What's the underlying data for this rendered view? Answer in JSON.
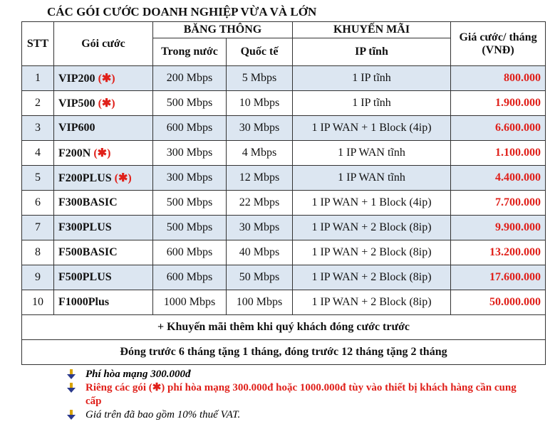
{
  "title": "CÁC GÓI CƯỚC DOANH NGHIỆP VỪA VÀ LỚN",
  "headers": {
    "stt": "STT",
    "package": "Gói cước",
    "bandwidth": "BĂNG THÔNG",
    "domestic": "Trong nước",
    "international": "Quốc tế",
    "promo": "KHUYẾN MÃI",
    "static_ip": "IP tĩnh",
    "price": "Giá cước/ tháng (VNĐ)"
  },
  "rows": [
    {
      "stt": "1",
      "name": "VIP200",
      "star": "(✱)",
      "domestic": "200 Mbps",
      "intl": "5 Mbps",
      "ip": "1 IP tĩnh",
      "price": "800.000"
    },
    {
      "stt": "2",
      "name": "VIP500",
      "star": "(✱)",
      "domestic": "500 Mbps",
      "intl": "10 Mbps",
      "ip": "1 IP tĩnh",
      "price": "1.900.000"
    },
    {
      "stt": "3",
      "name": "VIP600",
      "star": "",
      "domestic": "600 Mbps",
      "intl": "30 Mbps",
      "ip": "1 IP WAN + 1 Block (4ip)",
      "price": "6.600.000"
    },
    {
      "stt": "4",
      "name": "F200N",
      "star": "(✱)",
      "domestic": "300 Mbps",
      "intl": "4 Mbps",
      "ip": "1 IP WAN tĩnh",
      "price": "1.100.000"
    },
    {
      "stt": "5",
      "name": "F200PLUS",
      "star": "(✱)",
      "domestic": "300 Mbps",
      "intl": "12 Mbps",
      "ip": "1 IP WAN tĩnh",
      "price": "4.400.000"
    },
    {
      "stt": "6",
      "name": "F300BASIC",
      "star": "",
      "domestic": "500 Mbps",
      "intl": "22 Mbps",
      "ip": "1 IP WAN + 1 Block (4ip)",
      "price": "7.700.000"
    },
    {
      "stt": "7",
      "name": "F300PLUS",
      "star": "",
      "domestic": "500 Mbps",
      "intl": "30 Mbps",
      "ip": "1 IP WAN + 2 Block (8ip)",
      "price": "9.900.000"
    },
    {
      "stt": "8",
      "name": "F500BASIC",
      "star": "",
      "domestic": "600 Mbps",
      "intl": "40 Mbps",
      "ip": "1 IP WAN + 2 Block (8ip)",
      "price": "13.200.000"
    },
    {
      "stt": "9",
      "name": "F500PLUS",
      "star": "",
      "domestic": "600 Mbps",
      "intl": "50 Mbps",
      "ip": "1 IP WAN + 2 Block (8ip)",
      "price": "17.600.000"
    },
    {
      "stt": "10",
      "name": "F1000Plus",
      "star": "",
      "domestic": "1000 Mbps",
      "intl": "100 Mbps",
      "ip": "1 IP WAN + 2 Block (8ip)",
      "price": "50.000.000"
    }
  ],
  "promo_line1": "+ Khuyến mãi thêm khi quý khách đóng cước trước",
  "promo_line2": "Đóng trước 6 tháng tặng 1 tháng, đóng trước 12 tháng tặng 2 tháng",
  "notes": [
    "Phí hòa mạng 300.000đ",
    "Riêng các gói (✱) phí hòa mạng 300.000đ hoặc 1000.000đ tùy vào thiết bị khách hàng cần cung cấp",
    "Giá trên đã bao gồm 10% thuế VAT."
  ],
  "colors": {
    "row_alt": "#dce6f1",
    "price": "#e0201a"
  }
}
